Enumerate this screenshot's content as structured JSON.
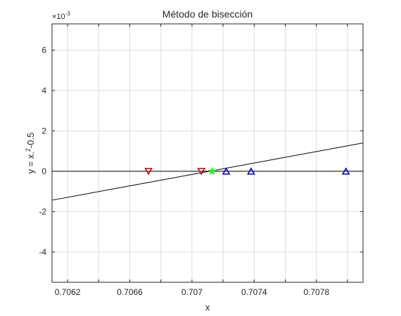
{
  "chart_data": {
    "type": "line",
    "title": "Método de bisección",
    "xlabel": "x",
    "ylabel": "y = x.^2-0.5",
    "ylabel_parts": {
      "base": "y = x.",
      "sup": "2",
      "rest": "-0.5"
    },
    "y_exponent": {
      "prefix": "×10",
      "power": "-3"
    },
    "xlim": [
      0.7061,
      0.7081
    ],
    "ylim": [
      -5.5,
      7.3
    ],
    "y_scale_factor": 0.001,
    "x_ticks": [
      0.7062,
      0.7064,
      0.7066,
      0.7068,
      0.707,
      0.7072,
      0.7074,
      0.7076,
      0.7078,
      0.708
    ],
    "x_tick_labels": [
      "0.7062",
      "",
      "0.7066",
      "",
      "0.707",
      "",
      "0.7074",
      "",
      "0.7078",
      ""
    ],
    "y_ticks": [
      -4,
      -2,
      0,
      2,
      4,
      6
    ],
    "y_tick_labels": [
      "-4",
      "-2",
      "0",
      "2",
      "4",
      "6"
    ],
    "grid": true,
    "series": [
      {
        "kind": "curve",
        "color": "#000000",
        "x": [
          0.7061,
          0.7081
        ],
        "y": [
          -1.4328,
          1.3997
        ]
      },
      {
        "kind": "hline",
        "color": "#000000",
        "y": 0
      },
      {
        "kind": "markers",
        "marker": "triangle-down",
        "color": "#d00000",
        "x": [
          0.70672,
          0.70706
        ],
        "y": [
          0,
          0
        ]
      },
      {
        "kind": "markers",
        "marker": "triangle-up",
        "color": "#0000c8",
        "x": [
          0.70722,
          0.70738,
          0.70799
        ],
        "y": [
          0,
          0,
          0
        ]
      },
      {
        "kind": "markers",
        "marker": "star",
        "color": "#22ee22",
        "x": [
          0.70713
        ],
        "y": [
          0
        ]
      }
    ]
  }
}
